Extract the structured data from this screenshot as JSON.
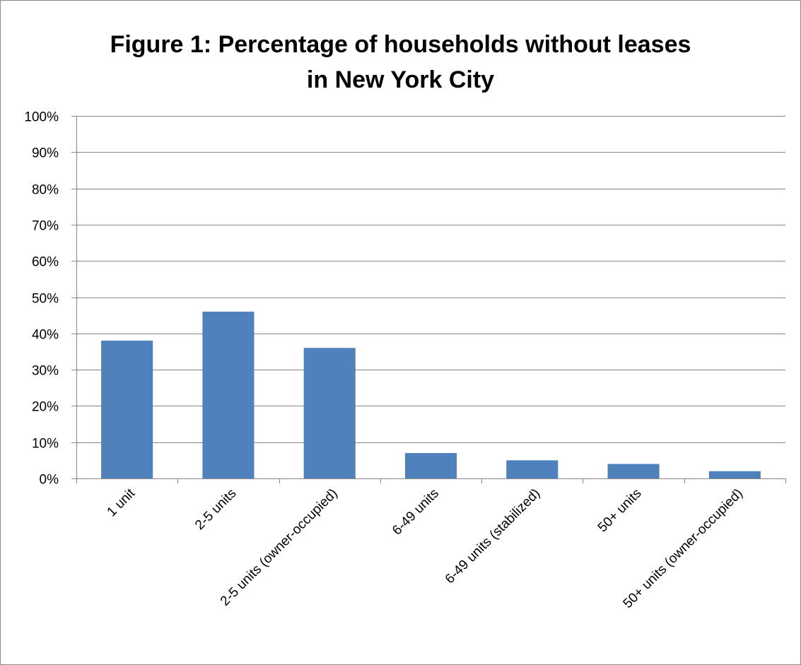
{
  "chart_data": {
    "type": "bar",
    "title_lines": [
      "Figure 1: Percentage of households without leases",
      "in New York City"
    ],
    "categories": [
      "1 unit",
      "2-5 units",
      "2-5 units (owner-occupied)",
      "6-49 units",
      "6-49 units (stabilized)",
      "50+ units",
      "50+ units (owner-occupied)"
    ],
    "values": [
      38,
      46,
      36,
      7,
      5,
      4,
      2
    ],
    "ylim": [
      0,
      100
    ],
    "yticks": [
      "0%",
      "10%",
      "20%",
      "30%",
      "40%",
      "50%",
      "60%",
      "70%",
      "80%",
      "90%",
      "100%"
    ],
    "grid": true,
    "legend": "none",
    "bar_color": "#4f81bd",
    "grid_color": "#868686"
  }
}
